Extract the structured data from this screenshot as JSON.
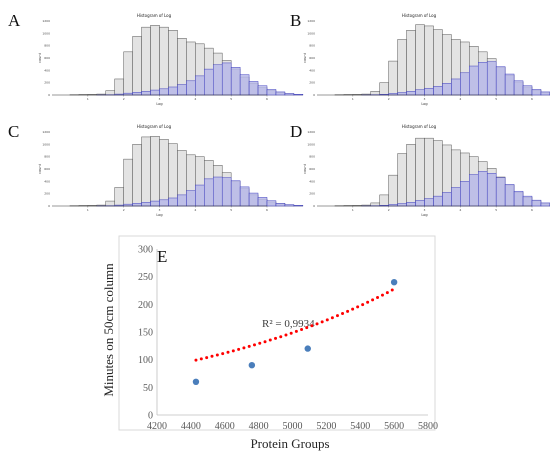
{
  "chart_data": [
    {
      "panel": "A",
      "type": "bar",
      "title": "Histogram of Log",
      "xlabel": "Log",
      "ylabel": "count",
      "x_ticks": [
        1,
        2,
        3,
        4,
        5,
        6
      ],
      "xlim": [
        0,
        6
      ],
      "ylim": [
        0,
        1200
      ],
      "y_ticks": [
        0,
        200,
        400,
        600,
        800,
        1000,
        1200
      ],
      "bin_start": 0.5,
      "bin_width": 0.25,
      "series": [
        {
          "values": [
            5,
            8,
            10,
            15,
            70,
            260,
            700,
            950,
            1100,
            1130,
            1100,
            1050,
            920,
            860,
            830,
            760,
            680,
            560,
            420,
            290,
            190,
            120,
            70,
            40,
            20,
            10
          ],
          "color": "#e3e3e3",
          "stroke": "#555555"
        },
        {
          "values": [
            0,
            0,
            0,
            2,
            5,
            15,
            30,
            45,
            60,
            80,
            100,
            130,
            170,
            230,
            310,
            420,
            490,
            520,
            450,
            330,
            220,
            150,
            90,
            50,
            25,
            12
          ],
          "color": "#b7b9e8",
          "stroke": "#3333bb"
        }
      ]
    },
    {
      "panel": "B",
      "type": "bar",
      "title": "Histogram of Log",
      "xlabel": "Log",
      "ylabel": "count",
      "x_ticks": [
        1,
        2,
        3,
        4,
        5,
        6
      ],
      "xlim": [
        0,
        6
      ],
      "ylim": [
        0,
        1200
      ],
      "y_ticks": [
        0,
        200,
        400,
        600,
        800,
        1000,
        1200
      ],
      "bin_start": 0.5,
      "bin_width": 0.25,
      "series": [
        {
          "values": [
            5,
            8,
            10,
            15,
            60,
            200,
            550,
            900,
            1050,
            1140,
            1120,
            1060,
            980,
            900,
            860,
            790,
            700,
            590,
            450,
            320,
            210,
            130,
            80,
            45,
            22,
            10
          ],
          "color": "#e3e3e3",
          "stroke": "#555555"
        },
        {
          "values": [
            0,
            0,
            0,
            2,
            5,
            12,
            25,
            40,
            60,
            85,
            110,
            140,
            190,
            260,
            360,
            470,
            530,
            540,
            460,
            340,
            230,
            150,
            90,
            50,
            25,
            12
          ],
          "color": "#b7b9e8",
          "stroke": "#3333bb"
        }
      ]
    },
    {
      "panel": "C",
      "type": "bar",
      "title": "Histogram of Log",
      "xlabel": "Log",
      "ylabel": "count",
      "x_ticks": [
        1,
        2,
        3,
        4,
        5,
        6
      ],
      "xlim": [
        0,
        6
      ],
      "ylim": [
        0,
        1200
      ],
      "y_ticks": [
        0,
        200,
        400,
        600,
        800,
        1000,
        1200
      ],
      "bin_start": 0.5,
      "bin_width": 0.25,
      "series": [
        {
          "values": [
            5,
            8,
            10,
            15,
            80,
            300,
            760,
            1000,
            1120,
            1130,
            1080,
            1010,
            900,
            830,
            800,
            740,
            660,
            540,
            400,
            280,
            180,
            110,
            65,
            35,
            18,
            8
          ],
          "color": "#e3e3e3",
          "stroke": "#555555"
        },
        {
          "values": [
            0,
            0,
            0,
            2,
            5,
            15,
            30,
            45,
            60,
            80,
            100,
            130,
            180,
            250,
            340,
            440,
            470,
            460,
            410,
            310,
            210,
            140,
            85,
            45,
            22,
            10
          ],
          "color": "#b7b9e8",
          "stroke": "#3333bb"
        }
      ]
    },
    {
      "panel": "D",
      "type": "bar",
      "title": "Histogram of Log",
      "xlabel": "Log",
      "ylabel": "count",
      "x_ticks": [
        1,
        2,
        3,
        4,
        5,
        6
      ],
      "xlim": [
        0,
        6
      ],
      "ylim": [
        0,
        1200
      ],
      "y_ticks": [
        0,
        200,
        400,
        600,
        800,
        1000,
        1200
      ],
      "bin_start": 0.5,
      "bin_width": 0.25,
      "series": [
        {
          "values": [
            5,
            8,
            10,
            15,
            50,
            180,
            500,
            850,
            1000,
            1100,
            1100,
            1060,
            990,
            910,
            860,
            800,
            720,
            610,
            470,
            340,
            220,
            140,
            85,
            45,
            22,
            10
          ],
          "color": "#e3e3e3",
          "stroke": "#555555"
        },
        {
          "values": [
            0,
            0,
            0,
            2,
            5,
            12,
            25,
            40,
            60,
            90,
            120,
            160,
            220,
            300,
            400,
            510,
            560,
            530,
            460,
            350,
            240,
            160,
            95,
            50,
            25,
            12
          ],
          "color": "#b7b9e8",
          "stroke": "#3333bb"
        }
      ]
    },
    {
      "panel": "E",
      "type": "scatter",
      "xlabel": "Protein Groups",
      "ylabel": "Minutes on 50cm column",
      "xlim": [
        4200,
        5800
      ],
      "ylim": [
        0,
        300
      ],
      "x_ticks": [
        4200,
        4400,
        4600,
        4800,
        5000,
        5200,
        5400,
        5600,
        5800
      ],
      "y_ticks": [
        0,
        50,
        100,
        150,
        200,
        250,
        300
      ],
      "grid": false,
      "series": [
        {
          "x": [
            4430,
            4760,
            5090,
            5600
          ],
          "y": [
            60,
            90,
            120,
            240
          ],
          "color": "#4a7ebb"
        }
      ],
      "trendline": {
        "type": "exponential",
        "a": 4.27,
        "b": 0.00071,
        "color": "#ff0000",
        "style": "dotted",
        "x_range": [
          4430,
          5600
        ]
      },
      "annotation": "R² = 0,9934"
    }
  ]
}
